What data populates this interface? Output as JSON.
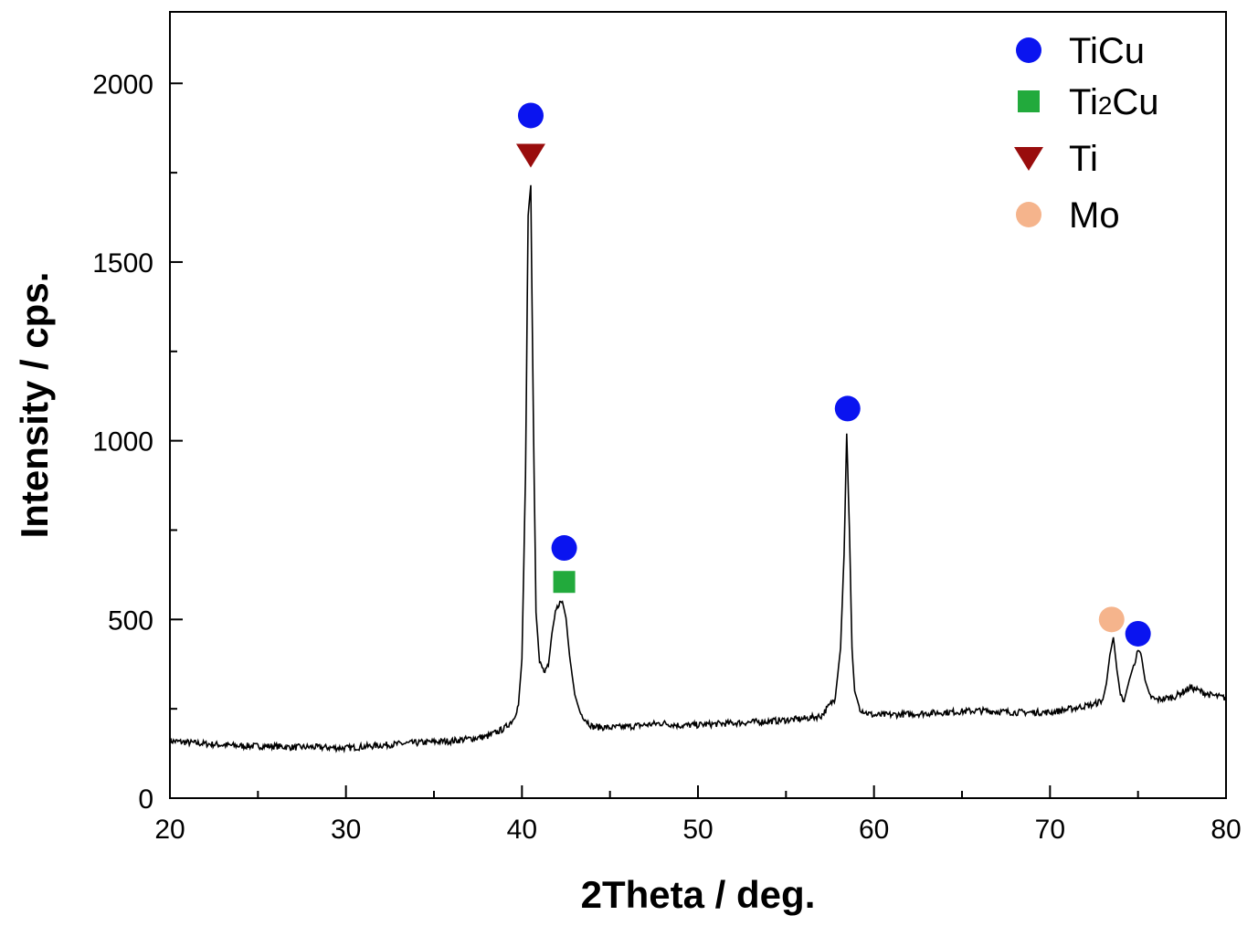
{
  "chart_data": {
    "type": "line",
    "title": "",
    "xlabel": "2Theta / deg.",
    "ylabel": "Intensity / cps.",
    "xlim": [
      20,
      80
    ],
    "ylim": [
      0,
      2200
    ],
    "x_ticks": [
      20,
      30,
      40,
      50,
      60,
      70,
      80
    ],
    "x_tick_labels": [
      "20",
      "30",
      "40",
      "50",
      "60",
      "70",
      "80"
    ],
    "y_ticks": [
      0,
      500,
      1000,
      1500,
      2000
    ],
    "y_tick_labels": [
      "0",
      "500",
      "1000",
      "1500",
      "2000"
    ],
    "grid": false,
    "legend_position": "top-right",
    "line_color": "#000000",
    "series": [
      {
        "x": [
          20,
          22,
          24,
          26,
          27,
          28,
          30,
          32,
          34,
          36,
          38,
          39,
          39.5,
          39.8,
          40.0,
          40.2,
          40.35,
          40.5,
          40.65,
          40.8,
          41.0,
          41.3,
          41.5,
          41.7,
          41.9,
          42.1,
          42.3,
          42.5,
          42.7,
          43.0,
          43.3,
          43.7,
          44,
          45,
          46,
          47,
          48,
          49,
          50,
          52,
          54,
          56,
          57,
          57.8,
          58.1,
          58.3,
          58.45,
          58.6,
          58.75,
          58.9,
          59.2,
          59.6,
          60,
          62,
          64,
          66,
          68,
          70,
          71,
          72,
          72.5,
          73.0,
          73.2,
          73.4,
          73.6,
          73.8,
          74.0,
          74.2,
          74.5,
          74.8,
          75.0,
          75.2,
          75.4,
          75.7,
          76,
          77,
          78,
          79,
          80
        ],
        "y": [
          160,
          152,
          146,
          145,
          142,
          143,
          140,
          148,
          155,
          160,
          172,
          195,
          220,
          260,
          390,
          900,
          1630,
          1715,
          1050,
          520,
          380,
          350,
          370,
          460,
          520,
          545,
          550,
          505,
          400,
          290,
          240,
          215,
          200,
          197,
          200,
          205,
          210,
          203,
          205,
          210,
          215,
          222,
          230,
          280,
          420,
          680,
          1020,
          760,
          420,
          300,
          250,
          238,
          232,
          235,
          240,
          245,
          240,
          240,
          248,
          258,
          262,
          275,
          320,
          400,
          450,
          360,
          290,
          270,
          330,
          380,
          410,
          395,
          330,
          285,
          275,
          282,
          310,
          290,
          280
        ]
      }
    ],
    "legend": [
      {
        "label": "TiCu",
        "marker": "circle",
        "color": "#0a14f0"
      },
      {
        "label": "Ti2Cu",
        "marker": "square",
        "color": "#22aa3c"
      },
      {
        "label": "Ti",
        "marker": "triangle-down",
        "color": "#990d0d"
      },
      {
        "label": "Mo",
        "marker": "circle",
        "color": "#f5b48c"
      }
    ],
    "peak_markers": [
      {
        "phase": "TiCu",
        "x": 40.5,
        "y": 1910
      },
      {
        "phase": "Ti",
        "x": 40.5,
        "y": 1800
      },
      {
        "phase": "TiCu",
        "x": 42.4,
        "y": 700
      },
      {
        "phase": "Ti2Cu",
        "x": 42.4,
        "y": 605
      },
      {
        "phase": "TiCu",
        "x": 58.5,
        "y": 1090
      },
      {
        "phase": "Mo",
        "x": 73.5,
        "y": 500
      },
      {
        "phase": "TiCu",
        "x": 75.0,
        "y": 460
      }
    ]
  }
}
